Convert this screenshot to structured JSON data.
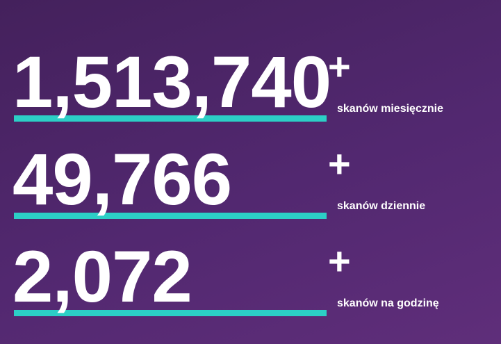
{
  "stats": [
    {
      "value": "1,513,740",
      "plus": "+",
      "label": "skanów miesięcznie"
    },
    {
      "value": "49,766",
      "plus": "+",
      "label": "skanów dziennie"
    },
    {
      "value": "2,072",
      "plus": "+",
      "label": "skanów na godzinę"
    }
  ]
}
